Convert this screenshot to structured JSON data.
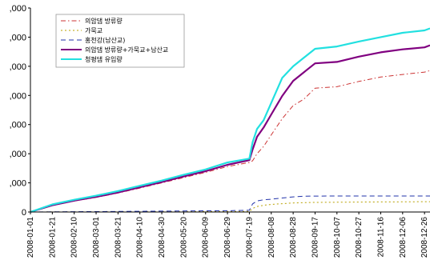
{
  "chart_data": {
    "type": "line",
    "title": "",
    "xlabel": "",
    "ylabel": "",
    "ylim": [
      0,
      7000
    ],
    "grid": false,
    "legend_position": "top-left",
    "y_tick_labels": [
      "0",
      ",000",
      ",000",
      ",000",
      ",000",
      ",000",
      ",000",
      ",000"
    ],
    "y_tick_values": [
      0,
      1000,
      2000,
      3000,
      4000,
      5000,
      6000,
      7000
    ],
    "x_tick_labels": [
      "2008-01-01",
      "2008-01-21",
      "2008-02-10",
      "2008-03-01",
      "2008-03-21",
      "2008-04-10",
      "2008-04-30",
      "2008-05-20",
      "2008-06-09",
      "2008-06-29",
      "2008-07-19",
      "2008-08-08",
      "2008-08-28",
      "2008-09-17",
      "2008-10-07",
      "2008-10-27",
      "2008-11-16",
      "2008-12-06",
      "2008-12-26"
    ],
    "x": [
      "2008-01-01",
      "2008-01-21",
      "2008-02-10",
      "2008-03-01",
      "2008-03-21",
      "2008-04-10",
      "2008-04-30",
      "2008-05-20",
      "2008-06-09",
      "2008-06-29",
      "2008-07-19",
      "2008-07-22",
      "2008-07-26",
      "2008-08-01",
      "2008-08-08",
      "2008-08-18",
      "2008-08-28",
      "2008-09-07",
      "2008-09-17",
      "2008-10-07",
      "2008-10-27",
      "2008-11-16",
      "2008-12-06",
      "2008-12-26",
      "2008-12-31"
    ],
    "series": [
      {
        "name": "의암댐 방류량",
        "color": "#cc3333",
        "dash": "dashdot",
        "values": [
          0,
          220,
          380,
          500,
          650,
          820,
          1000,
          1180,
          1360,
          1560,
          1700,
          1760,
          2000,
          2250,
          2650,
          3200,
          3650,
          3880,
          4250,
          4300,
          4480,
          4630,
          4720,
          4800,
          4850
        ]
      },
      {
        "name": "가묵교",
        "color": "#b8a000",
        "dash": "dot",
        "values": [
          0,
          2,
          4,
          5,
          6,
          8,
          10,
          12,
          14,
          16,
          20,
          120,
          190,
          230,
          260,
          285,
          310,
          320,
          330,
          335,
          340,
          345,
          350,
          355,
          355
        ]
      },
      {
        "name": "홍천강(남산교)",
        "color": "#2233aa",
        "dash": "dash",
        "values": [
          0,
          5,
          10,
          15,
          20,
          25,
          30,
          35,
          40,
          45,
          60,
          280,
          380,
          420,
          440,
          480,
          520,
          540,
          545,
          550,
          550,
          550,
          550,
          550,
          550
        ]
      },
      {
        "name": "의암댐 방류량+가묵교+남산교",
        "color": "#800080",
        "dash": "solid",
        "values": [
          0,
          230,
          390,
          520,
          670,
          850,
          1030,
          1220,
          1400,
          1620,
          1780,
          2150,
          2580,
          2900,
          3350,
          3980,
          4500,
          4800,
          5100,
          5150,
          5330,
          5480,
          5580,
          5650,
          5720
        ]
      },
      {
        "name": "청평댐 유입량",
        "color": "#22e0e0",
        "dash": "solid",
        "values": [
          0,
          260,
          420,
          560,
          720,
          900,
          1080,
          1280,
          1460,
          1700,
          1830,
          2400,
          2850,
          3150,
          3750,
          4600,
          5000,
          5300,
          5600,
          5680,
          5850,
          6000,
          6150,
          6230,
          6300
        ]
      }
    ]
  }
}
